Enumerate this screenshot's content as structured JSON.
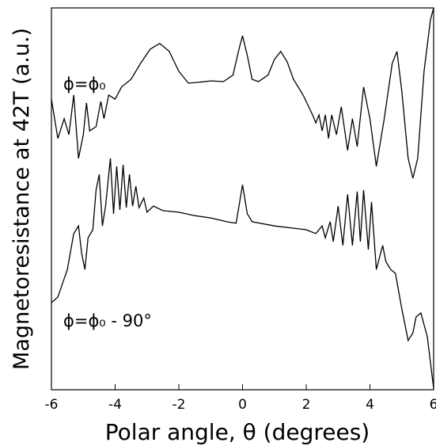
{
  "chart_data": {
    "type": "line",
    "xlabel": "Polar angle, θ (degrees)",
    "ylabel": "Magnetoresistance at 42T (a.u.)",
    "xlim": [
      -6,
      6
    ],
    "xticks": [
      -6,
      -4,
      -2,
      0,
      2,
      4,
      6
    ],
    "ylim": [
      0,
      100
    ],
    "series": [
      {
        "name": "ϕ=ϕ₀",
        "color": "#000000",
        "x": [
          -6,
          -5.8,
          -5.6,
          -5.45,
          -5.3,
          -5.15,
          -5.0,
          -4.9,
          -4.8,
          -4.6,
          -4.45,
          -4.35,
          -4.2,
          -4.0,
          -3.8,
          -3.5,
          -3.2,
          -2.9,
          -2.6,
          -2.3,
          -2.0,
          -1.7,
          -1.4,
          -1.0,
          -0.6,
          -0.3,
          -0.1,
          0.0,
          0.15,
          0.3,
          0.5,
          0.8,
          1.0,
          1.2,
          1.4,
          1.6,
          1.9,
          2.2,
          2.3,
          2.4,
          2.5,
          2.6,
          2.7,
          2.8,
          2.95,
          3.1,
          3.3,
          3.45,
          3.6,
          3.8,
          4.0,
          4.2,
          4.45,
          4.7,
          4.85,
          5.0,
          5.2,
          5.35,
          5.5,
          5.7,
          5.9,
          6.0
        ],
        "values": [
          76.1,
          65.8,
          71,
          66.8,
          77.2,
          60.6,
          66.8,
          75.1,
          67.8,
          68.9,
          75.5,
          71,
          77.2,
          76.1,
          79.3,
          81.3,
          85.5,
          89.2,
          90.7,
          88.6,
          83.4,
          80.3,
          80.5,
          80.9,
          80.7,
          82.4,
          89.6,
          92.7,
          87.6,
          81.3,
          80.7,
          82.4,
          86.5,
          88.6,
          85.9,
          81.3,
          77.2,
          72,
          69.9,
          72,
          67.8,
          72,
          65.8,
          72,
          66.8,
          74.1,
          62.7,
          71,
          63.7,
          79.3,
          71,
          58.5,
          71,
          85.5,
          88.6,
          78.2,
          60.6,
          55.4,
          60.6,
          83.4,
          96.9,
          100
        ]
      },
      {
        "name": "ϕ=ϕ₀ - 90°",
        "color": "#000000",
        "x": [
          -6,
          -5.8,
          -5.5,
          -5.3,
          -5.15,
          -5.05,
          -4.95,
          -4.85,
          -4.7,
          -4.6,
          -4.5,
          -4.4,
          -4.3,
          -4.15,
          -4.05,
          -3.95,
          -3.85,
          -3.75,
          -3.65,
          -3.55,
          -3.45,
          -3.35,
          -3.25,
          -3.1,
          -3.0,
          -2.8,
          -2.5,
          -2.0,
          -1.5,
          -1.0,
          -0.5,
          -0.2,
          0.0,
          0.15,
          0.3,
          1.0,
          2.0,
          2.3,
          2.5,
          2.6,
          2.75,
          2.85,
          3.0,
          3.15,
          3.3,
          3.45,
          3.6,
          3.7,
          3.8,
          3.95,
          4.05,
          4.2,
          4.4,
          4.5,
          4.65,
          4.8,
          5.0,
          5.2,
          5.35,
          5.45,
          5.6,
          5.8,
          6.0
        ],
        "values": [
          22.8,
          24.3,
          31.5,
          40.9,
          42.9,
          35.7,
          31.5,
          39.8,
          41.9,
          52.3,
          56.4,
          42.9,
          48.1,
          60.6,
          46.1,
          58.5,
          47.1,
          58.9,
          47.7,
          56.4,
          48.1,
          53.3,
          47.7,
          50.2,
          46.5,
          48.1,
          46.9,
          46.5,
          45.6,
          45,
          44,
          43.6,
          53.7,
          46.1,
          44,
          42.9,
          41.9,
          40.9,
          42.9,
          39.8,
          44,
          38.8,
          48.1,
          37.8,
          51.2,
          37.8,
          51.9,
          38.8,
          52.3,
          36.7,
          49.2,
          31.5,
          37.8,
          33.6,
          31.5,
          30.5,
          21.2,
          12.9,
          14.9,
          19.1,
          20.1,
          13.9,
          0.4
        ]
      }
    ]
  }
}
